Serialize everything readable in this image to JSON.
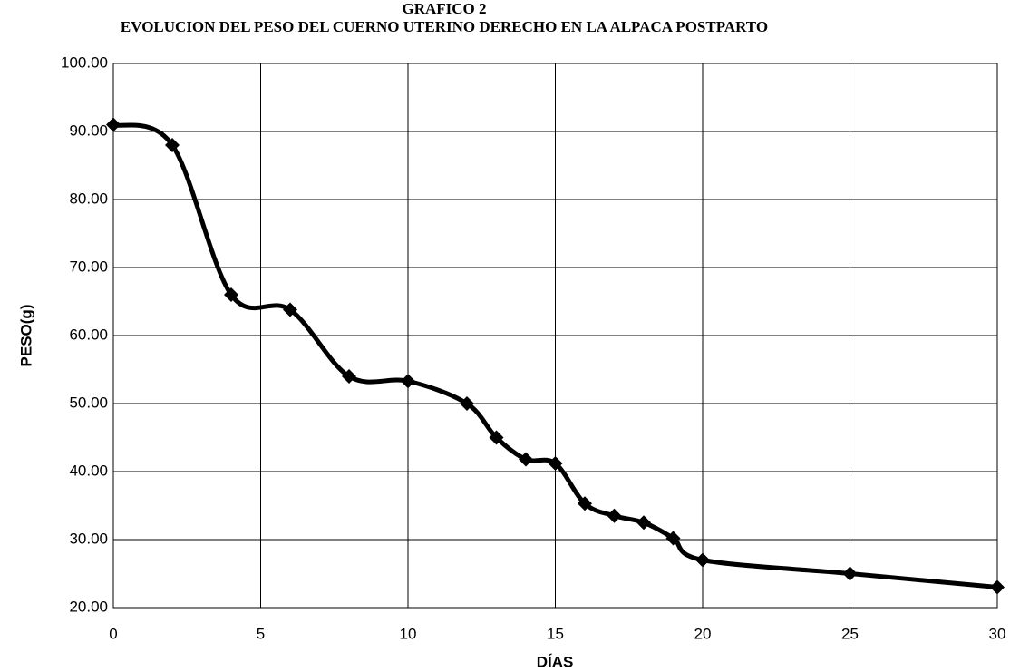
{
  "chart_data": {
    "type": "line",
    "title": "GRAFICO 2",
    "subtitle": "EVOLUCION DEL PESO DEL CUERNO UTERINO DERECHO EN LA ALPACA POSTPARTO",
    "x_label": "DÍAS",
    "y_label": "PESO(g)",
    "x": [
      0,
      2,
      4,
      6,
      8,
      10,
      12,
      13,
      14,
      15,
      16,
      17,
      18,
      19,
      20,
      25,
      30
    ],
    "series": [
      {
        "name": "PESO",
        "color": "#000000",
        "values": [
          91,
          88,
          66,
          63.8,
          54,
          53.3,
          50,
          45,
          41.8,
          41.2,
          35.3,
          33.5,
          32.5,
          30.2,
          27,
          25,
          23
        ]
      }
    ],
    "xlim": [
      0,
      30
    ],
    "xticks": [
      0,
      5,
      10,
      15,
      20,
      25,
      30
    ],
    "ylim": [
      20,
      100
    ],
    "yticks": [
      {
        "value": 20,
        "label": "20.00"
      },
      {
        "value": 30,
        "label": "30.00"
      },
      {
        "value": 40,
        "label": "40.00"
      },
      {
        "value": 50,
        "label": "50.00"
      },
      {
        "value": 60,
        "label": "60.00"
      },
      {
        "value": 70,
        "label": "70.00"
      },
      {
        "value": 80,
        "label": "80.00"
      },
      {
        "value": 90,
        "label": "90.00"
      },
      {
        "value": 100,
        "label": "100.00"
      }
    ],
    "grid": true
  }
}
